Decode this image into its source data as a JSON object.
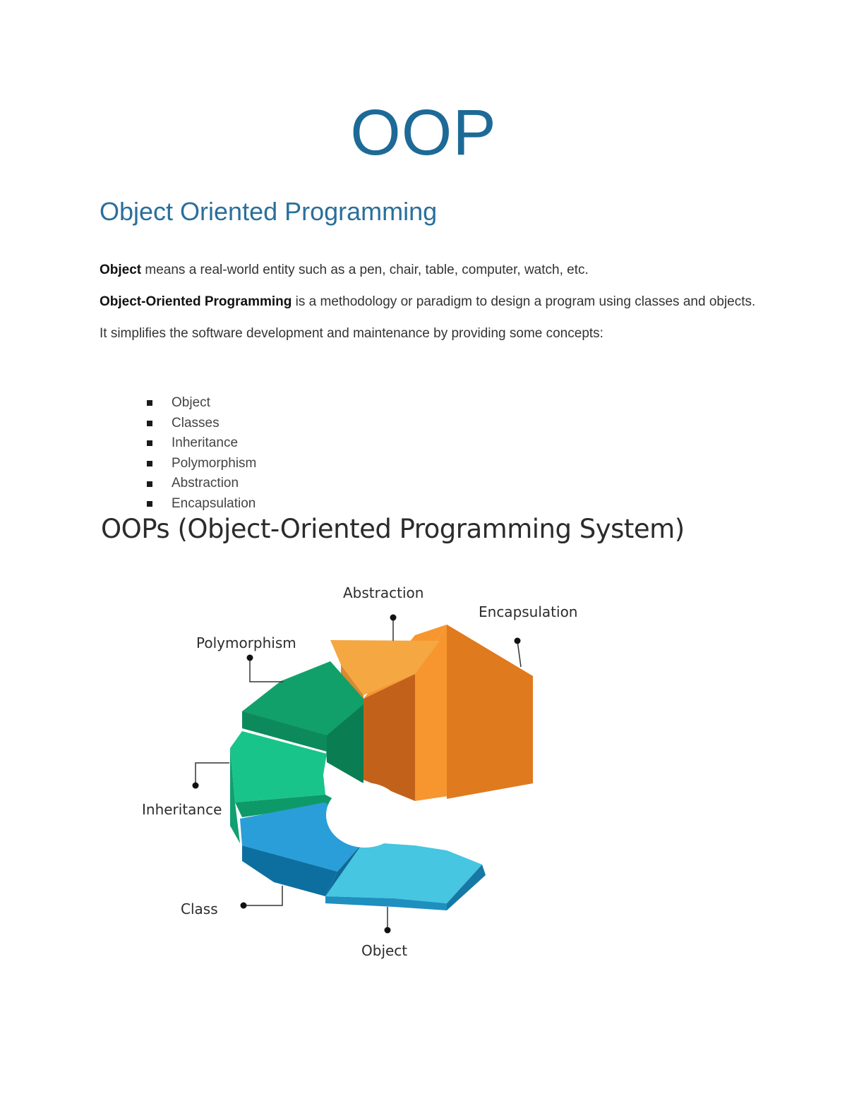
{
  "doc": {
    "title": "OOP",
    "subtitle": "Object Oriented Programming",
    "para1": {
      "bold": "Object",
      "text": " means a real-world entity such as a pen, chair, table, computer, watch, etc."
    },
    "para2": {
      "bold": "Object-Oriented Programming",
      "text": " is a methodology or paradigm to design a program using classes and objects. It simplifies the software development and maintenance by providing some concepts:"
    },
    "concepts": [
      "Object",
      "Classes",
      "Inheritance",
      "Polymorphism",
      "Abstraction",
      "Encapsulation"
    ]
  },
  "figure": {
    "title": "OOPs (Object-Oriented Programming System)",
    "labels": {
      "abstraction": "Abstraction",
      "encapsulation": "Encapsulation",
      "polymorphism": "Polymorphism",
      "inheritance": "Inheritance",
      "class": "Class",
      "object": "Object"
    },
    "colors": {
      "abstraction": "#f5a742",
      "encapsulation": "#f7962f",
      "polymorphism": "#12a06a",
      "inheritance": "#19c48a",
      "class": "#2a9ed8",
      "object": "#46c6e0"
    }
  }
}
